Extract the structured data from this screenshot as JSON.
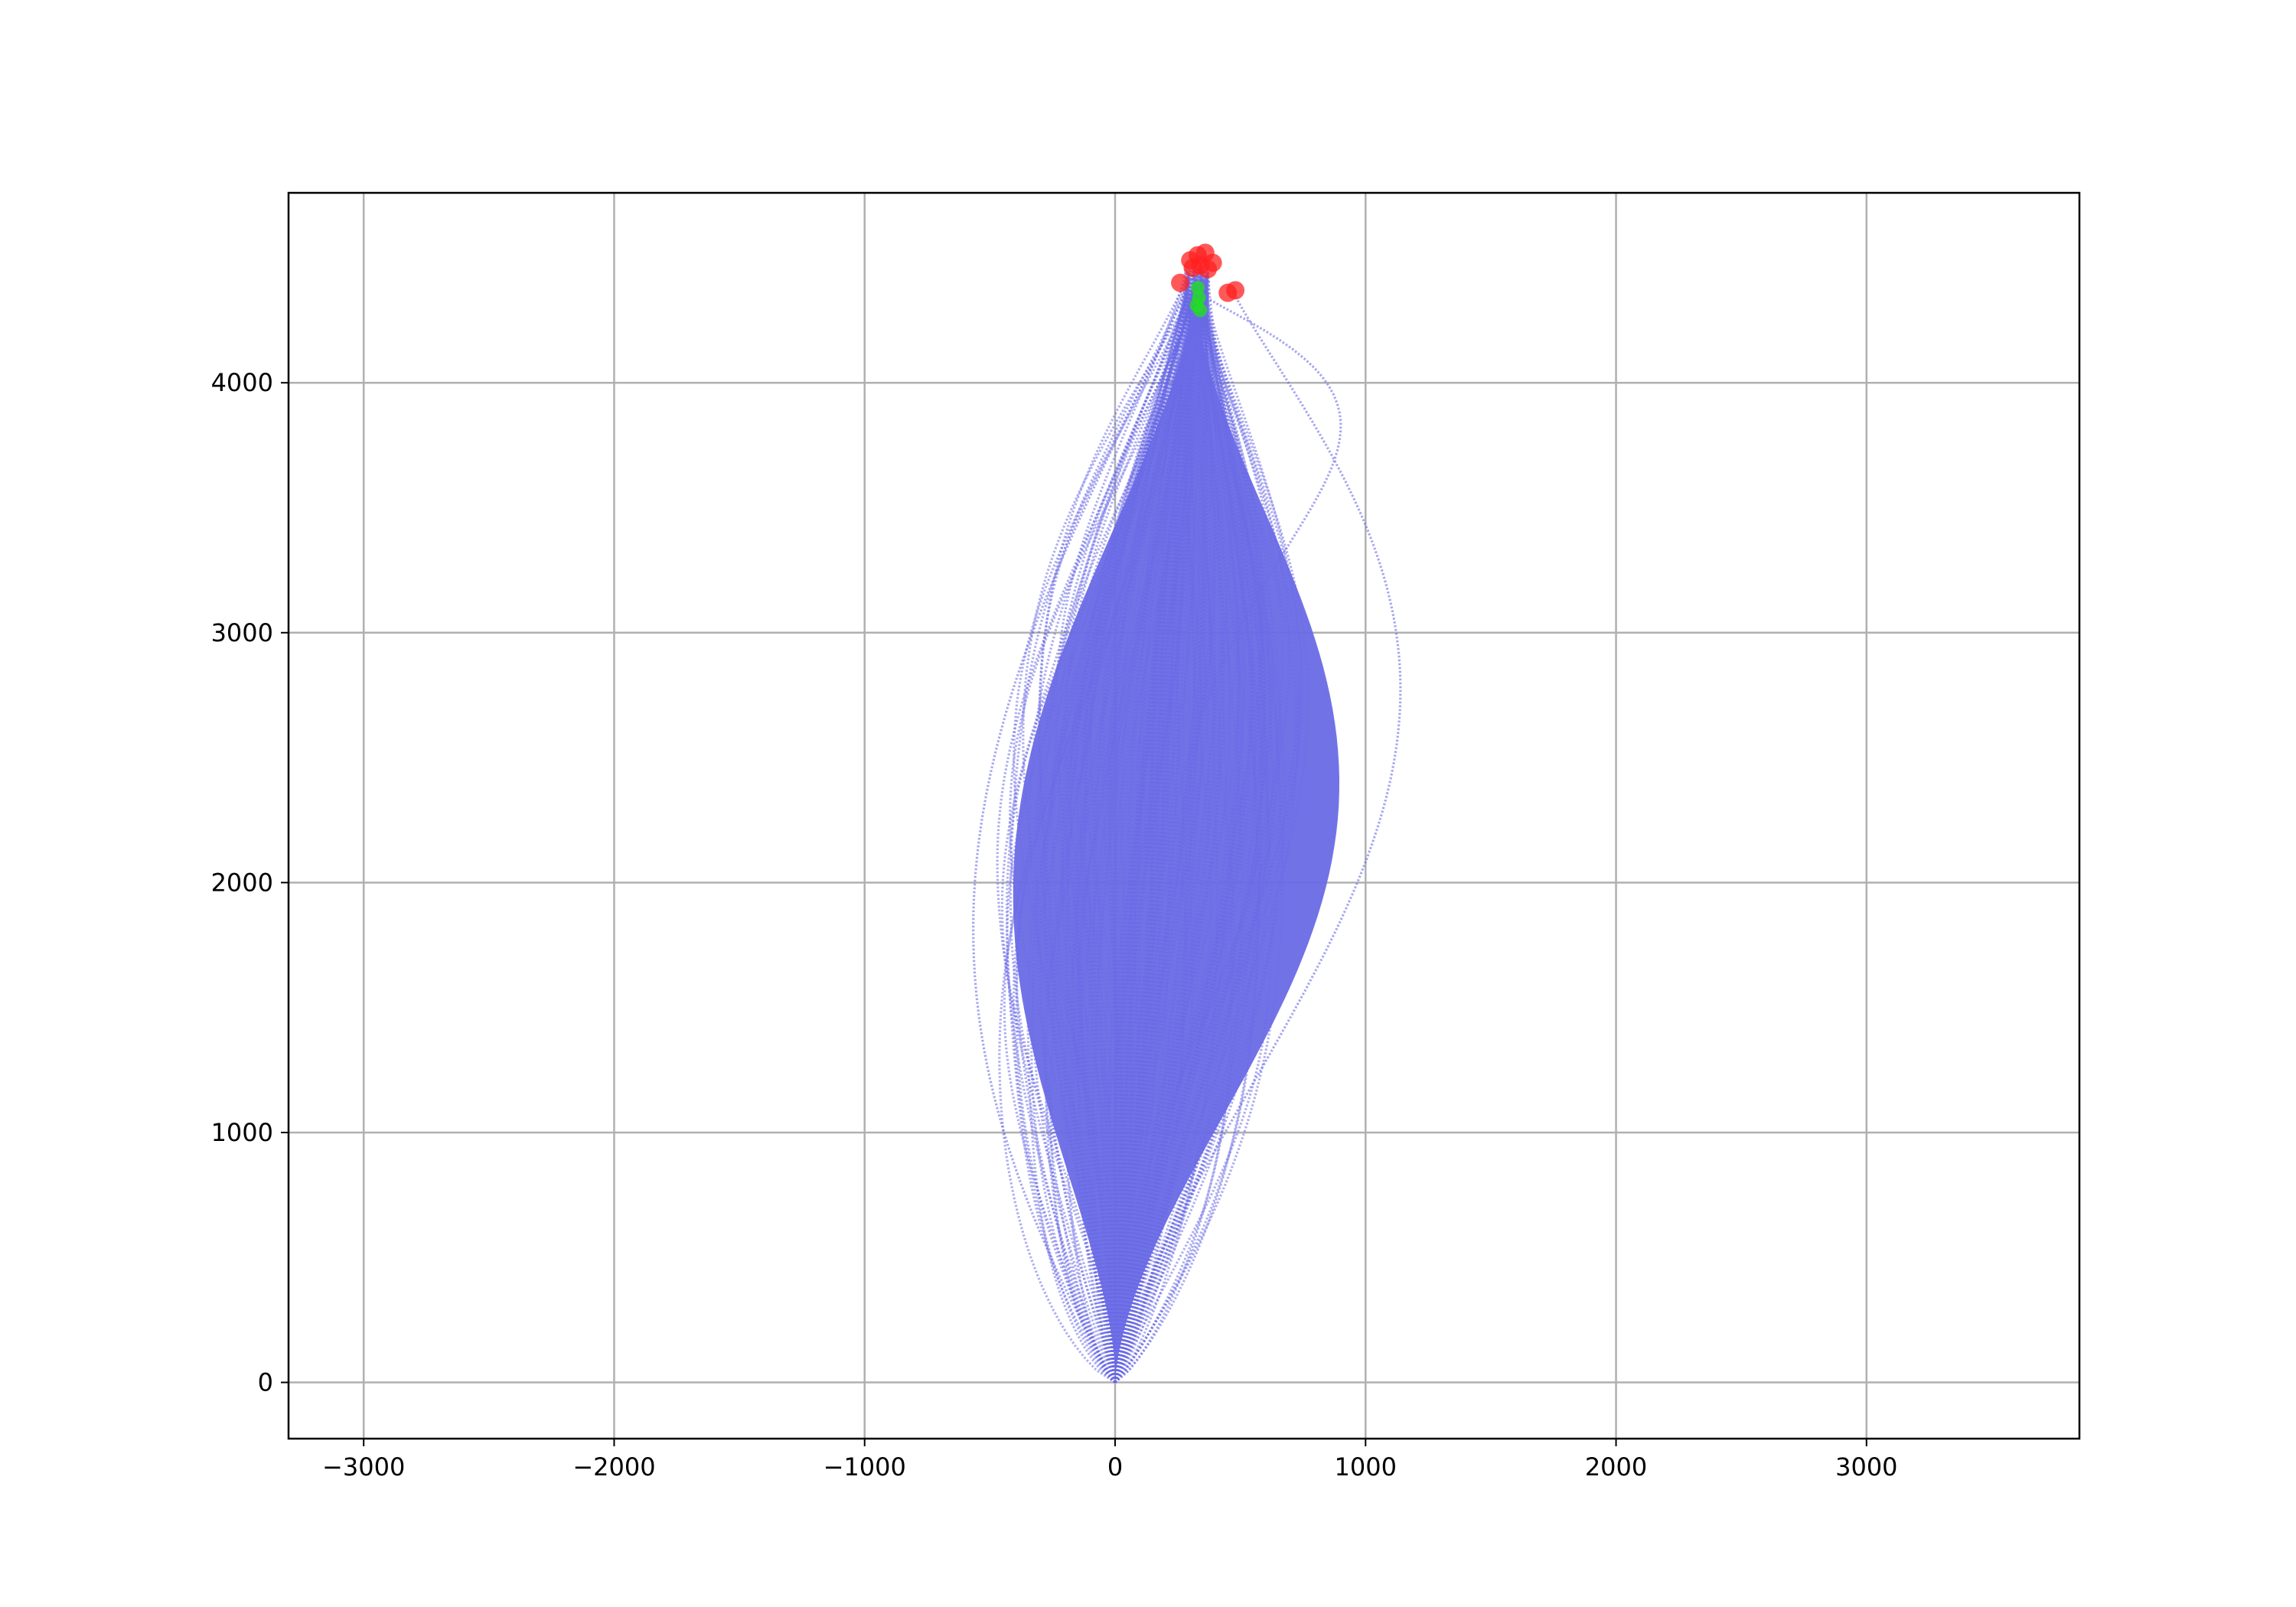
{
  "chart_data": {
    "type": "line",
    "title": "",
    "xlabel": "",
    "ylabel": "",
    "xlim": [
      -3300,
      3850
    ],
    "ylim": [
      -225,
      4760
    ],
    "grid": true,
    "x_ticks": [
      -3000,
      -2000,
      -1000,
      0,
      1000,
      2000,
      3000
    ],
    "y_ticks": [
      0,
      1000,
      2000,
      3000,
      4000
    ],
    "x_tick_labels": [
      "−3000",
      "−2000",
      "−1000",
      "0",
      "1000",
      "2000",
      "3000"
    ],
    "y_tick_labels": [
      "0",
      "1000",
      "2000",
      "3000",
      "4000"
    ],
    "colors": {
      "trajectory": "#6a6ae6",
      "endpoint_red": "#ff2020",
      "endpoint_green": "#22dd22",
      "grid": "#b0b0b0",
      "axes": "#000000"
    },
    "trajectories": {
      "start": [
        0,
        0
      ],
      "target": [
        330,
        4400
      ],
      "count_approx": 200,
      "lateral_bulge_range": [
        -560,
        1130
      ],
      "notable_paths": [
        {
          "end": [
            470,
            4370
          ],
          "bulge_x": 1130,
          "bulge_y": 2600
        },
        {
          "end": [
            300,
            4420
          ],
          "bulge_x": -560,
          "bulge_y": 2000
        },
        {
          "end": [
            350,
            4350
          ],
          "bulge_x": 900,
          "bulge_y": 3800
        }
      ]
    },
    "red_endpoints": [
      [
        330,
        4510
      ],
      [
        360,
        4520
      ],
      [
        300,
        4490
      ],
      [
        390,
        4480
      ],
      [
        340,
        4470
      ],
      [
        310,
        4460
      ],
      [
        370,
        4455
      ],
      [
        260,
        4400
      ],
      [
        480,
        4370
      ],
      [
        450,
        4360
      ]
    ],
    "green_endpoints": [
      [
        330,
        4380
      ],
      [
        335,
        4340
      ],
      [
        325,
        4310
      ],
      [
        340,
        4290
      ]
    ]
  }
}
